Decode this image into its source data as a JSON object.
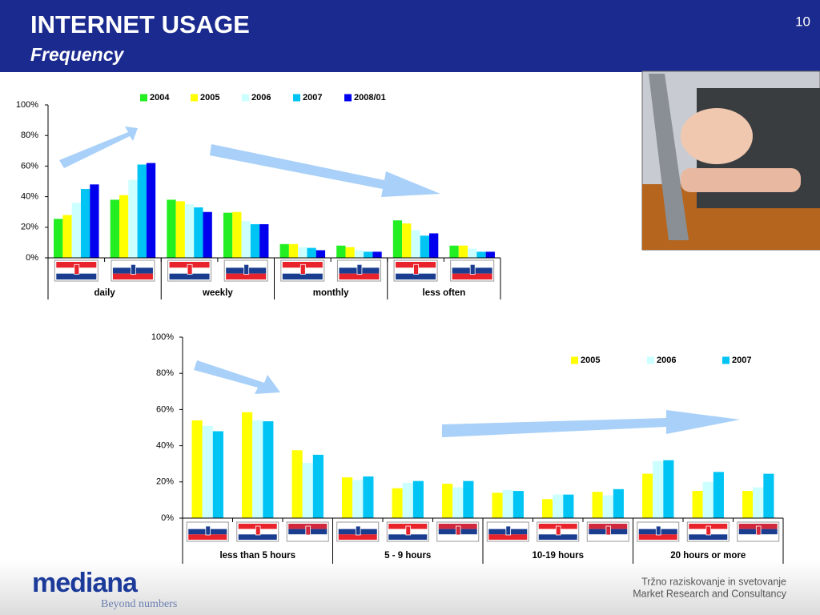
{
  "header": {
    "title": "INTERNET USAGE",
    "subtitle": "Frequency",
    "page_number": "10"
  },
  "chart_data": [
    {
      "type": "bar",
      "categories": [
        null,
        null,
        null,
        null,
        null,
        null,
        null,
        null
      ],
      "group_labels": [
        "daily",
        "weekly",
        "monthly",
        "less often"
      ],
      "series": [
        {
          "name": "2004",
          "color": "#22ee22",
          "values": [
            25.5,
            38,
            38,
            29.5,
            9,
            8,
            24.5,
            8
          ]
        },
        {
          "name": "2005",
          "color": "#ffff00",
          "values": [
            28,
            41,
            37,
            30,
            9,
            7,
            22.5,
            8
          ]
        },
        {
          "name": "2006",
          "color": "#ccffff",
          "values": [
            36,
            51,
            35,
            24,
            7,
            5,
            18,
            6
          ]
        },
        {
          "name": "2007",
          "color": "#00c4f4",
          "values": [
            45,
            61,
            33,
            22,
            6.5,
            4,
            14.5,
            4
          ]
        },
        {
          "name": "2008/01",
          "color": "#0000ee",
          "values": [
            48,
            62,
            30,
            22,
            5,
            4,
            16,
            4
          ]
        }
      ],
      "ylim": [
        0,
        100
      ],
      "yticks": [
        {
          "value": 0,
          "label": "0%"
        },
        {
          "value": 20,
          "label": "20%"
        },
        {
          "value": 40,
          "label": "40%"
        },
        {
          "value": 60,
          "label": "60%"
        },
        {
          "value": 80,
          "label": "80%"
        },
        {
          "value": 100,
          "label": "100%"
        }
      ],
      "legend": "top"
    },
    {
      "type": "bar",
      "categories": [
        null,
        null,
        null,
        null,
        null,
        null,
        null,
        null,
        null,
        null,
        null,
        null
      ],
      "group_labels": [
        "less than 5 hours",
        "5 - 9 hours",
        "10-19 hours",
        "20 hours or more"
      ],
      "series": [
        {
          "name": "2005",
          "color": "#ffff00",
          "values": [
            54,
            58.5,
            37.5,
            22.5,
            16.5,
            19,
            14,
            10.5,
            14.5,
            24.5,
            15,
            15
          ]
        },
        {
          "name": "2006",
          "color": "#ccffff",
          "values": [
            51,
            54,
            30.5,
            21,
            19.5,
            17,
            15.5,
            13,
            12.5,
            31.5,
            20,
            17
          ]
        },
        {
          "name": "2007",
          "color": "#00c4f4",
          "values": [
            48,
            53.5,
            35,
            23,
            20.5,
            20.5,
            15,
            13,
            16,
            32,
            25.5,
            24.5
          ]
        }
      ],
      "ylim": [
        0,
        100
      ],
      "yticks": [
        {
          "value": 0,
          "label": "0%"
        },
        {
          "value": 20,
          "label": "20%"
        },
        {
          "value": 40,
          "label": "40%"
        },
        {
          "value": 60,
          "label": "60%"
        },
        {
          "value": 80,
          "label": "80%"
        },
        {
          "value": 100,
          "label": "100%"
        }
      ],
      "legend": "upper right"
    }
  ],
  "footer": {
    "logo": "mediana",
    "tagline": "Beyond numbers",
    "right_line1": "Tržno raziskovanje in svetovanje",
    "right_line2": "Market Research and Consultancy"
  }
}
